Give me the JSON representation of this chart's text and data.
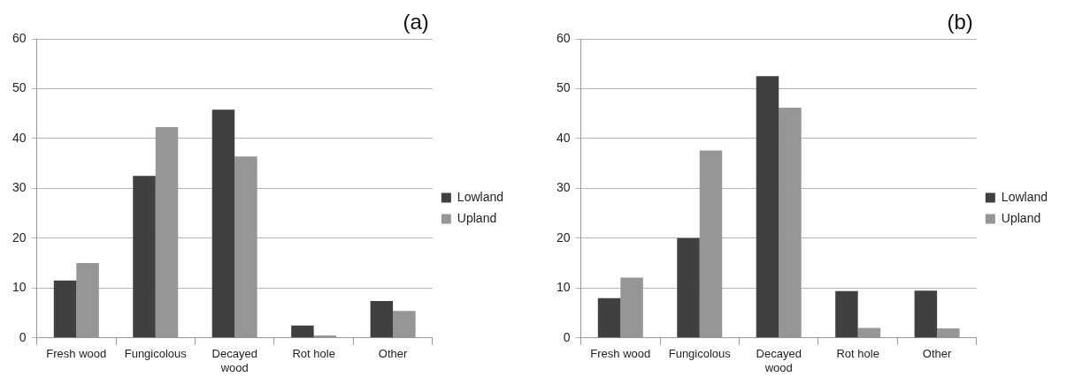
{
  "chart_data": [
    {
      "type": "bar",
      "title": "(a)",
      "categories": [
        "Fresh wood",
        "Fungicolous",
        "Decayed wood",
        "Rot hole",
        "Other"
      ],
      "series": [
        {
          "name": "Lowland",
          "color": "#404040",
          "values": [
            11.5,
            32.5,
            45.8,
            2.5,
            7.4
          ]
        },
        {
          "name": "Upland",
          "color": "#969696",
          "values": [
            15.0,
            42.3,
            36.4,
            0.5,
            5.4
          ]
        }
      ],
      "ylim": [
        0,
        60
      ],
      "yticks": [
        0,
        10,
        20,
        30,
        40,
        50,
        60
      ],
      "grid": "y",
      "legend": "right"
    },
    {
      "type": "bar",
      "title": "(b)",
      "categories": [
        "Fresh wood",
        "Fungicolous",
        "Decayed wood",
        "Rot hole",
        "Other"
      ],
      "series": [
        {
          "name": "Lowland",
          "color": "#404040",
          "values": [
            8.0,
            20.0,
            52.5,
            9.4,
            9.5
          ]
        },
        {
          "name": "Upland",
          "color": "#969696",
          "values": [
            12.1,
            37.6,
            46.2,
            2.0,
            1.9
          ]
        }
      ],
      "ylim": [
        0,
        60
      ],
      "yticks": [
        0,
        10,
        20,
        30,
        40,
        50,
        60
      ],
      "grid": "y",
      "legend": "right"
    }
  ]
}
